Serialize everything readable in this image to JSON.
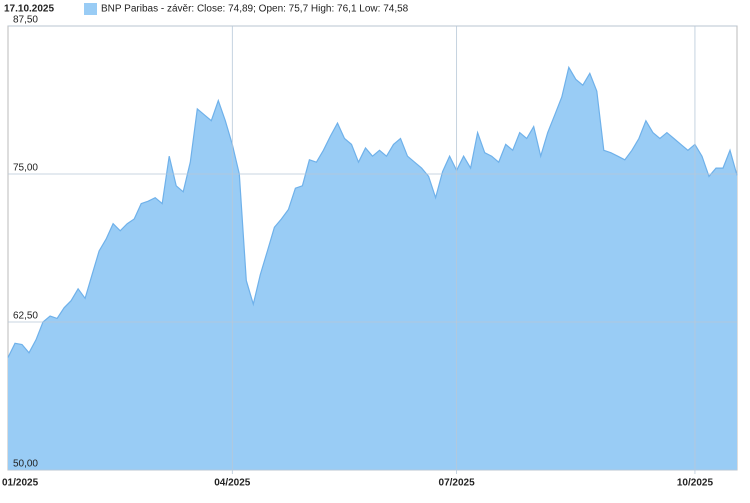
{
  "chart_data": {
    "type": "area",
    "title": "17.10.2025",
    "categories": [
      "01/2025",
      null,
      null,
      null,
      null,
      null,
      null,
      null,
      null,
      null,
      null,
      null,
      null,
      null,
      null,
      null,
      null,
      null,
      null,
      null,
      null,
      null,
      null,
      null,
      null,
      null,
      null,
      null,
      null,
      null,
      null,
      null,
      "04/2025",
      null,
      null,
      null,
      null,
      null,
      null,
      null,
      null,
      null,
      null,
      null,
      null,
      null,
      null,
      null,
      null,
      null,
      null,
      null,
      null,
      null,
      null,
      null,
      null,
      null,
      null,
      null,
      null,
      null,
      null,
      null,
      "07/2025",
      null,
      null,
      null,
      null,
      null,
      null,
      null,
      null,
      null,
      null,
      null,
      null,
      null,
      null,
      null,
      null,
      null,
      null,
      null,
      null,
      null,
      null,
      null,
      null,
      null,
      null,
      null,
      null,
      null,
      null,
      null,
      null,
      null,
      "10/2025",
      null,
      null,
      null,
      null,
      null,
      null
    ],
    "series": [
      {
        "name": "BNP Paribas - závěr: Close: 74,89; Open: 75,7 High: 76,1 Low: 74,58",
        "color": "#99ccf5",
        "line_color": "#6fb1ea",
        "values": [
          59.5,
          60.7,
          60.6,
          59.9,
          61.0,
          62.5,
          63.0,
          62.8,
          63.7,
          64.3,
          65.3,
          64.5,
          66.5,
          68.5,
          69.5,
          70.8,
          70.2,
          70.8,
          71.2,
          72.5,
          72.7,
          73.0,
          72.5,
          76.5,
          74.0,
          73.5,
          76.0,
          80.5,
          80.0,
          79.5,
          81.2,
          79.5,
          77.5,
          75.0,
          66.0,
          64.0,
          66.5,
          68.5,
          70.5,
          71.2,
          72.0,
          73.8,
          74.0,
          76.2,
          76.0,
          77.0,
          78.2,
          79.3,
          78.0,
          77.5,
          76.0,
          77.2,
          76.5,
          77.0,
          76.5,
          77.5,
          78.0,
          76.5,
          76.0,
          75.5,
          74.8,
          73.0,
          75.2,
          76.5,
          75.3,
          76.5,
          75.5,
          78.5,
          76.8,
          76.5,
          76.0,
          77.5,
          77.0,
          78.5,
          78.0,
          79.0,
          76.5,
          78.5,
          80.0,
          81.5,
          84.0,
          83.0,
          82.5,
          83.5,
          82.0,
          77.0,
          76.8,
          76.5,
          76.2,
          77.0,
          78.0,
          79.5,
          78.5,
          78.0,
          78.5,
          78.0,
          77.5,
          77.0,
          77.5,
          76.5,
          74.8,
          75.5,
          75.5,
          77.0,
          74.89
        ]
      }
    ],
    "ylim": [
      50,
      87.5
    ],
    "yticks": [
      {
        "value": 50,
        "label": "50,00"
      },
      {
        "value": 62.5,
        "label": "62,50"
      },
      {
        "value": 75,
        "label": "75,00"
      },
      {
        "value": 87.5,
        "label": "87,50"
      }
    ],
    "grid": true
  }
}
